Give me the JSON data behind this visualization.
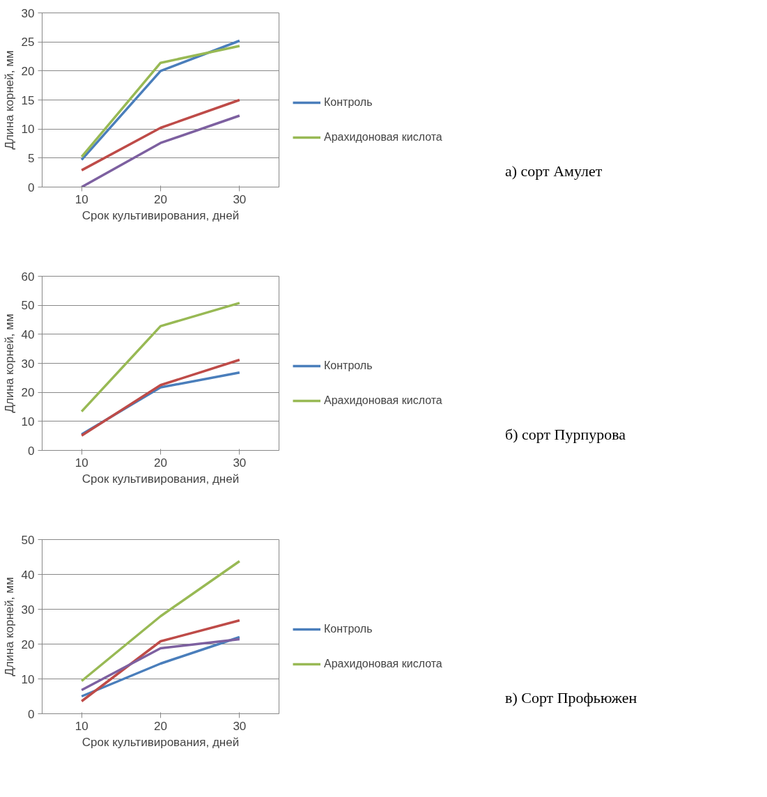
{
  "chart_data": [
    {
      "type": "line",
      "categories": [
        "10",
        "20",
        "30"
      ],
      "xlabel": "Срок культивирования, дней",
      "ylabel": "Длина корней, мм",
      "ylim": [
        0,
        30
      ],
      "yticks": [
        0,
        5,
        10,
        15,
        20,
        25,
        30
      ],
      "grid": "y",
      "legend": "right",
      "annotations": [
        "а) сорт Амулет"
      ],
      "series": [
        {
          "name": "Контроль",
          "color": "#4a7ebb",
          "values": [
            4.7,
            20,
            25.2
          ]
        },
        {
          "color": "#be4b48",
          "values": [
            2.9,
            10.2,
            15
          ]
        },
        {
          "name": "Арахидоновая кислота",
          "color": "#98b954",
          "values": [
            5.2,
            21.4,
            24.3
          ]
        },
        {
          "color": "#7d60a0",
          "values": [
            0,
            7.6,
            12.3
          ]
        }
      ]
    },
    {
      "type": "line",
      "categories": [
        "10",
        "20",
        "30"
      ],
      "xlabel": "Срок культивирования, дней",
      "ylabel": "Длина корней, мм",
      "ylim": [
        0,
        60
      ],
      "yticks": [
        0,
        10,
        20,
        30,
        40,
        50,
        60
      ],
      "grid": "y",
      "legend": "right",
      "annotations": [
        "б) сорт Пурпурова"
      ],
      "series": [
        {
          "name": "Контроль",
          "color": "#4a7ebb",
          "values": [
            5.5,
            21.7,
            26.8
          ]
        },
        {
          "color": "#be4b48",
          "values": [
            5.1,
            22.5,
            31.2
          ]
        },
        {
          "name": "Арахидоновая кислота",
          "color": "#98b954",
          "values": [
            13.4,
            42.8,
            50.8
          ]
        }
      ]
    },
    {
      "type": "line",
      "categories": [
        "10",
        "20",
        "30"
      ],
      "xlabel": "Срок культивирования, дней",
      "ylabel": "Длина корней, мм",
      "ylim": [
        0,
        50
      ],
      "yticks": [
        0,
        10,
        20,
        30,
        40,
        50
      ],
      "grid": "y",
      "legend": "right",
      "annotations": [
        "в) Сорт Профьюжен"
      ],
      "series": [
        {
          "name": "Контроль",
          "color": "#4a7ebb",
          "values": [
            5,
            14.4,
            22
          ]
        },
        {
          "color": "#be4b48",
          "values": [
            3.6,
            20.8,
            26.8
          ]
        },
        {
          "name": "Арахидоновая кислота",
          "color": "#98b954",
          "values": [
            9.4,
            28,
            43.8
          ]
        },
        {
          "color": "#7d60a0",
          "values": [
            6.8,
            18.8,
            21.4
          ]
        }
      ]
    }
  ]
}
